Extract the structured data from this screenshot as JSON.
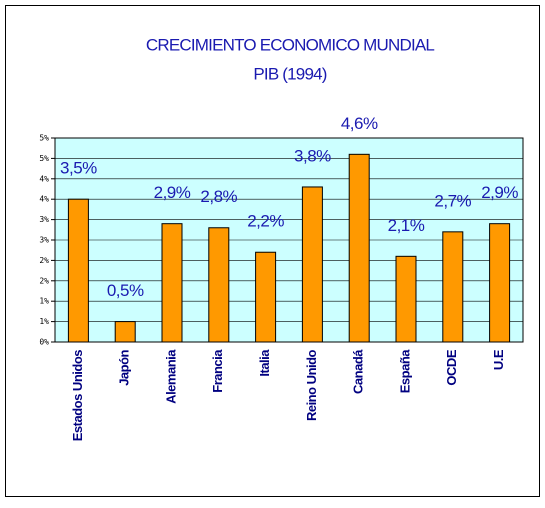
{
  "chart_data": {
    "type": "bar",
    "title": "CRECIMIENTO ECONOMICO MUNDIAL",
    "subtitle": "PIB (1994)",
    "categories": [
      "Estados Unidos",
      "Japón",
      "Alemania",
      "Francia",
      "Italia",
      "Reino Unido",
      "Canadá",
      "España",
      "OCDE",
      "U.E"
    ],
    "values": [
      3.5,
      0.5,
      2.9,
      2.8,
      2.2,
      3.8,
      4.6,
      2.1,
      2.7,
      2.9
    ],
    "value_labels": [
      "3,5%",
      "0,5%",
      "2,9%",
      "2,8%",
      "2,2%",
      "3,8%",
      "4,6%",
      "2,1%",
      "2,7%",
      "2,9%"
    ],
    "color": "#ff9900",
    "ylim": [
      0,
      5
    ],
    "yticks": [
      {
        "value": 0,
        "label": "0%"
      },
      {
        "value": 0.5,
        "label": "1%"
      },
      {
        "value": 1,
        "label": "1%"
      },
      {
        "value": 1.5,
        "label": "2%"
      },
      {
        "value": 2,
        "label": "2%"
      },
      {
        "value": 2.5,
        "label": "3%"
      },
      {
        "value": 3,
        "label": "3%"
      },
      {
        "value": 3.5,
        "label": "4%"
      },
      {
        "value": 4,
        "label": "4%"
      },
      {
        "value": 4.5,
        "label": "5%"
      },
      {
        "value": 5,
        "label": "5%"
      }
    ],
    "grid": true
  }
}
